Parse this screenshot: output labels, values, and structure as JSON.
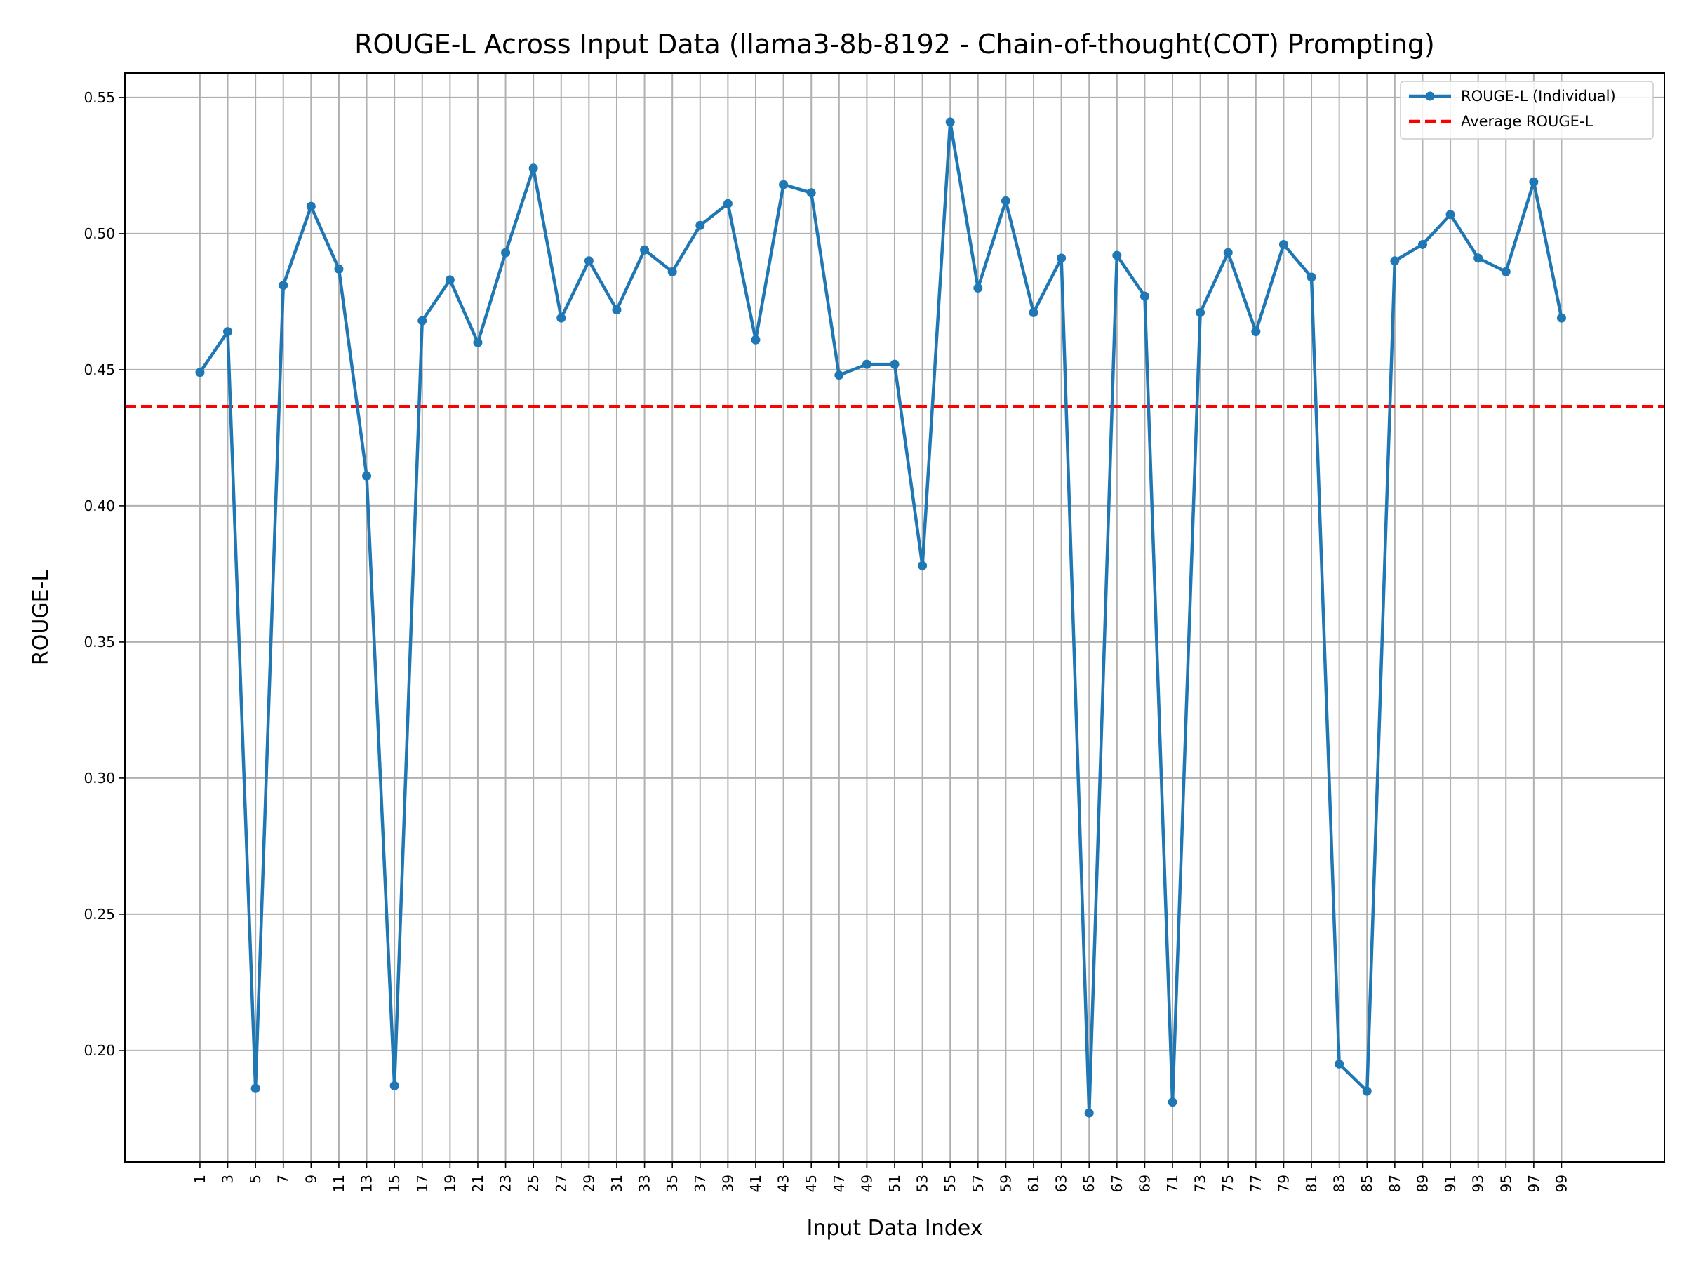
{
  "chart_data": {
    "type": "line",
    "title": "ROUGE-L Across Input Data (llama3-8b-8192 - Chain-of-thought(COT) Prompting)",
    "xlabel": "Input Data Index",
    "ylabel": "ROUGE-L",
    "xlim": [
      -4.4,
      106.4
    ],
    "ylim": [
      0.159,
      0.559
    ],
    "xticks": [
      1,
      3,
      5,
      7,
      9,
      11,
      13,
      15,
      17,
      19,
      21,
      23,
      25,
      27,
      29,
      31,
      33,
      35,
      37,
      39,
      41,
      43,
      45,
      47,
      49,
      51,
      53,
      55,
      57,
      59,
      61,
      63,
      65,
      67,
      69,
      71,
      73,
      75,
      77,
      79,
      81,
      83,
      85,
      87,
      89,
      91,
      93,
      95,
      97,
      99
    ],
    "yticks": [
      0.2,
      0.25,
      0.3,
      0.35,
      0.4,
      0.45,
      0.5,
      0.55
    ],
    "ytick_labels": [
      "0.20",
      "0.25",
      "0.30",
      "0.35",
      "0.40",
      "0.45",
      "0.50",
      "0.55"
    ],
    "grid": true,
    "legend_position": "top-right",
    "series": [
      {
        "name": "ROUGE-L (Individual)",
        "color": "#1f77b4",
        "style": "solid-line-with-markers",
        "x": [
          1,
          3,
          5,
          7,
          9,
          11,
          13,
          15,
          17,
          19,
          21,
          23,
          25,
          27,
          29,
          31,
          33,
          35,
          37,
          39,
          41,
          43,
          45,
          47,
          49,
          51,
          53,
          55,
          57,
          59,
          61,
          63,
          65,
          67,
          69,
          71,
          73,
          75,
          77,
          79,
          81,
          83,
          85,
          87,
          89,
          91,
          93,
          95,
          97,
          99
        ],
        "y": [
          0.449,
          0.464,
          0.186,
          0.481,
          0.51,
          0.487,
          0.411,
          0.187,
          0.468,
          0.483,
          0.46,
          0.493,
          0.524,
          0.469,
          0.49,
          0.472,
          0.494,
          0.486,
          0.503,
          0.511,
          0.461,
          0.518,
          0.515,
          0.448,
          0.452,
          0.452,
          0.378,
          0.541,
          0.48,
          0.512,
          0.471,
          0.491,
          0.177,
          0.492,
          0.477,
          0.181,
          0.471,
          0.493,
          0.464,
          0.496,
          0.484,
          0.195,
          0.185,
          0.49,
          0.496,
          0.507,
          0.491,
          0.486,
          0.519,
          0.469
        ]
      },
      {
        "name": "Average ROUGE-L",
        "color": "#ff0000",
        "style": "dashed-line",
        "y_constant": 0.4365
      }
    ]
  }
}
